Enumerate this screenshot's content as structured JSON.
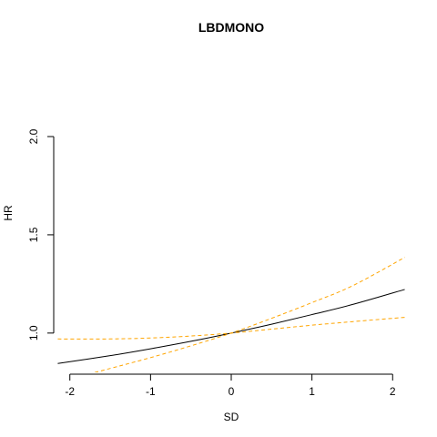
{
  "chart_data": {
    "type": "line",
    "title": "LBDMONO",
    "xlabel": "SD",
    "ylabel": "HR",
    "xlim": [
      -2.2,
      2.2
    ],
    "ylim": [
      0.8,
      2.0
    ],
    "x_ticks": [
      "-2",
      "-1",
      "0",
      "1",
      "2"
    ],
    "y_ticks": [
      "1.0",
      "1.5",
      "2.0"
    ],
    "series": [
      {
        "style": "solid",
        "color": "#000000",
        "x": [
          -2.15,
          -1.5,
          -1.0,
          -0.5,
          0.0,
          0.5,
          1.0,
          1.5,
          2.15
        ],
        "y": [
          0.845,
          0.885,
          0.92,
          0.958,
          1.0,
          1.045,
          1.094,
          1.145,
          1.222
        ]
      },
      {
        "style": "dashed",
        "color": "#FFA500",
        "x": [
          -2.15,
          -1.5,
          -1.0,
          -0.5,
          0.0,
          0.5,
          1.0,
          1.5,
          2.15
        ],
        "y": [
          0.97,
          0.97,
          0.975,
          0.985,
          1.0,
          1.02,
          1.04,
          1.058,
          1.08
        ]
      },
      {
        "style": "dashed",
        "color": "#FFA500",
        "x": [
          -2.15,
          -1.5,
          -1.0,
          -0.5,
          0.0,
          0.5,
          1.0,
          1.5,
          2.15
        ],
        "y": [
          0.75,
          0.82,
          0.875,
          0.935,
          1.0,
          1.075,
          1.155,
          1.24,
          1.385
        ]
      }
    ]
  }
}
